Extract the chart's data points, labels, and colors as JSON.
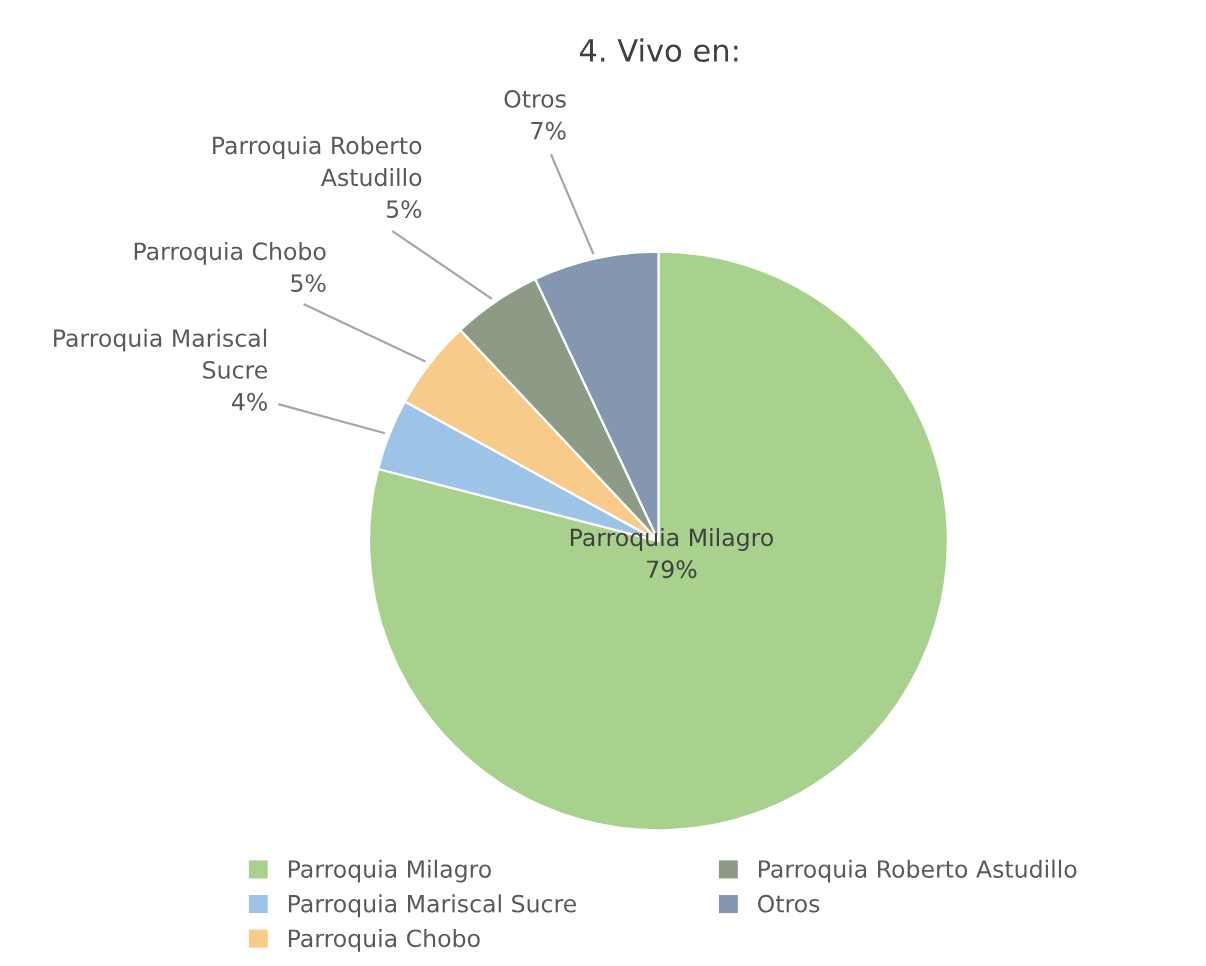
{
  "chart_data": {
    "type": "pie",
    "title": "4. Vivo en:",
    "categories": [
      "Parroquia Milagro",
      "Parroquia Mariscal Sucre",
      "Parroquia Chobo",
      "Parroquia Roberto Astudillo",
      "Otros"
    ],
    "values": [
      79,
      4,
      5,
      5,
      7
    ],
    "value_labels": [
      "79%",
      "4%",
      "5%",
      "5%",
      "7%"
    ],
    "colors": [
      "#a9d18e",
      "#9dc3e6",
      "#f8cb8a",
      "#8c9a86",
      "#8497b0"
    ],
    "legend": "bottom"
  }
}
